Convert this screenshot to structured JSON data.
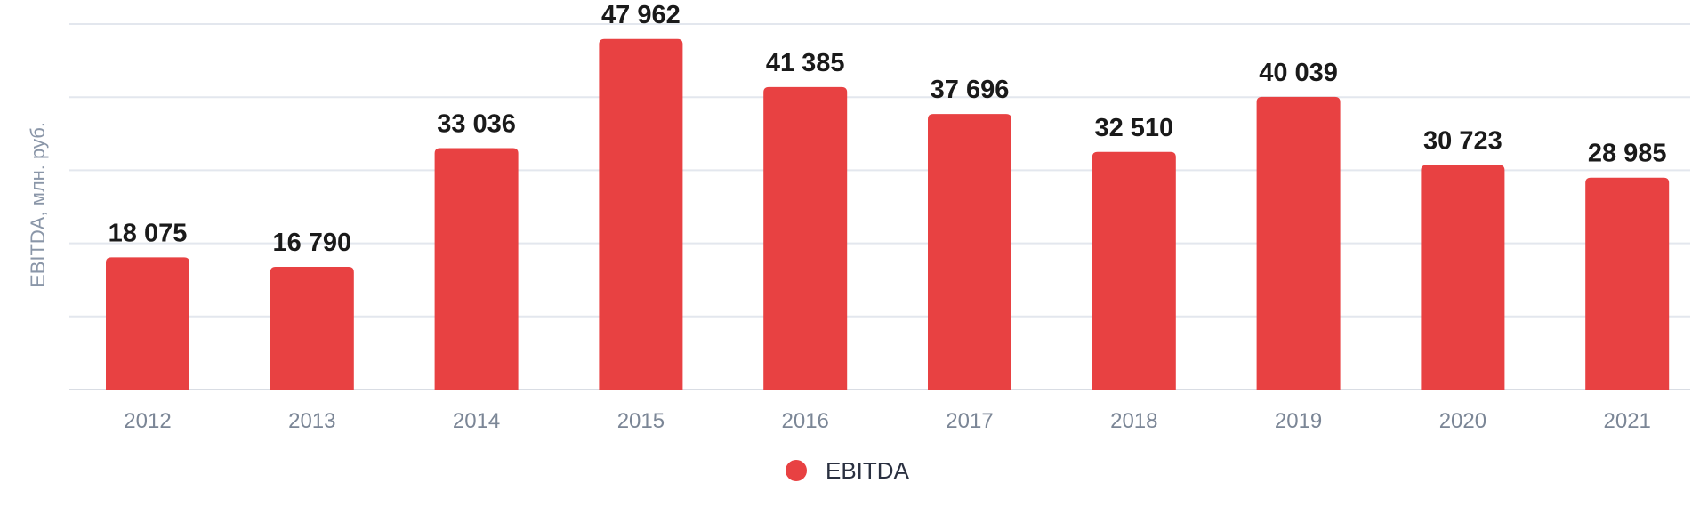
{
  "chart_data": {
    "type": "bar",
    "title": "",
    "xlabel": "",
    "ylabel": "EBITDA, млн. руб.",
    "categories": [
      "2012",
      "2013",
      "2014",
      "2015",
      "2016",
      "2017",
      "2018",
      "2019",
      "2020",
      "2021"
    ],
    "series": [
      {
        "name": "EBITDA",
        "color": "#e84142",
        "values": [
          18075,
          16790,
          33036,
          47962,
          41385,
          37696,
          32510,
          40039,
          30723,
          28985
        ],
        "labels": [
          "18 075",
          "16 790",
          "33 036",
          "47 962",
          "41 385",
          "37 696",
          "32 510",
          "40 039",
          "30 723",
          "28 985"
        ]
      }
    ],
    "ylim": [
      0,
      50000
    ],
    "grid": true,
    "legend": "bottom-center"
  }
}
